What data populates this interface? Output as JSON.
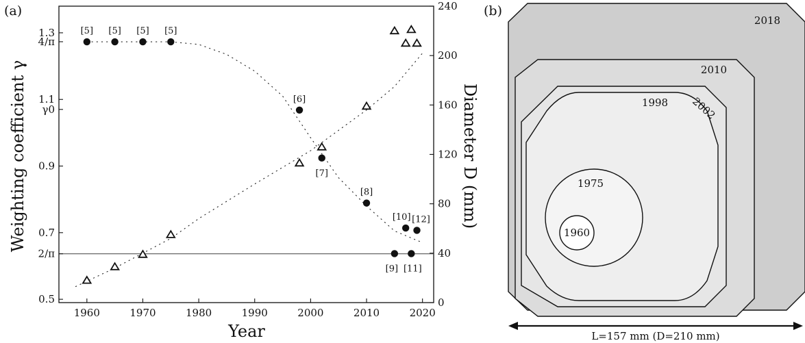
{
  "panel_a_label": "(a)",
  "panel_b_label": "(b)",
  "chart_data": [
    {
      "type": "scatter",
      "xlabel": "Year",
      "ylabel": "Weighting coefficient γ",
      "y2label": "Diameter D (mm)",
      "xlim": [
        1955,
        2022
      ],
      "ylim": [
        0.49,
        1.38
      ],
      "y2lim": [
        0,
        240
      ],
      "xticks": [
        "1960",
        "1970",
        "1980",
        "1990",
        "2000",
        "2010",
        "2020"
      ],
      "yticks": [
        {
          "v": 0.5,
          "label": "0.5"
        },
        {
          "v": 0.6366,
          "label": "2/π"
        },
        {
          "v": 0.7,
          "label": "0.7"
        },
        {
          "v": 0.9,
          "label": "0.9"
        },
        {
          "v": 1.07,
          "label": "γ0"
        },
        {
          "v": 1.1,
          "label": "1.1"
        },
        {
          "v": 1.2732,
          "label": "4/π"
        },
        {
          "v": 1.3,
          "label": "1.3"
        }
      ],
      "y2ticks": [
        "0",
        "40",
        "80",
        "120",
        "160",
        "200",
        "240"
      ],
      "reference_lines": [
        {
          "axis": "y",
          "value": 0.6366,
          "label": "2/π"
        }
      ],
      "series": [
        {
          "marker": "filled-circle",
          "axis": "left",
          "x": [
            1960,
            1965,
            1970,
            1975,
            1998,
            2002,
            2010,
            2015,
            2017,
            2018,
            2019
          ],
          "y": [
            1.273,
            1.273,
            1.273,
            1.273,
            1.068,
            0.924,
            0.789,
            0.637,
            0.714,
            0.637,
            0.707
          ],
          "labels": [
            "[5]",
            "[5]",
            "[5]",
            "[5]",
            "[6]",
            "[7]",
            "[8]",
            "[9]",
            "[10]",
            "[11]",
            "[12]"
          ]
        },
        {
          "marker": "open-triangle",
          "axis": "right",
          "x": [
            1960,
            1965,
            1970,
            1975,
            1998,
            2002,
            2010,
            2015,
            2017,
            2018,
            2019
          ],
          "y": [
            18,
            29,
            39,
            55,
            113,
            126,
            159,
            220,
            210,
            221,
            210
          ]
        }
      ],
      "trend_curves": [
        {
          "axis": "left",
          "x": [
            1960,
            1975,
            1980,
            1985,
            1990,
            1995,
            2000,
            2005,
            2010,
            2015,
            2020
          ],
          "y": [
            1.273,
            1.273,
            1.265,
            1.235,
            1.185,
            1.11,
            0.985,
            0.865,
            0.78,
            0.705,
            0.67
          ]
        },
        {
          "axis": "right",
          "x": [
            1958,
            1965,
            1970,
            1975,
            1980,
            1990,
            2000,
            2010,
            2015,
            2020
          ],
          "y": [
            13,
            28,
            40,
            52,
            68,
            96,
            123,
            156,
            175,
            202
          ]
        }
      ]
    },
    {
      "type": "diagram",
      "shapes": [
        "1960",
        "1975",
        "1998",
        "2002",
        "2010",
        "2018"
      ],
      "dimension_label": "L=157 mm (D=210 mm)"
    }
  ]
}
